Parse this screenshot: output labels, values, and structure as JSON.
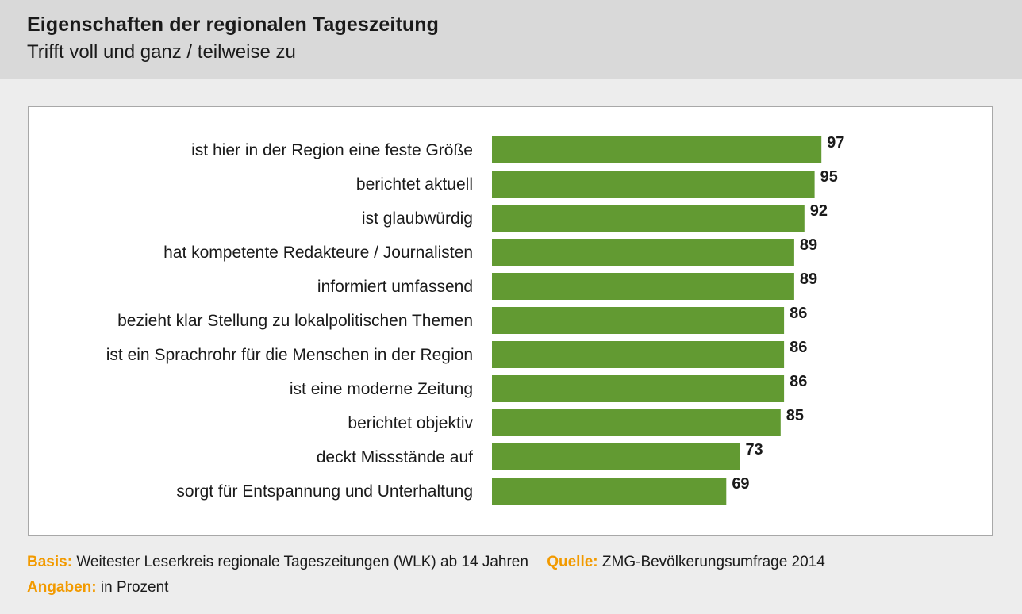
{
  "header": {
    "title": "Eigenschaften der regionalen Tageszeitung",
    "subtitle": "Trifft voll und ganz / teilweise zu"
  },
  "footer": {
    "basis_key": "Basis:",
    "basis_text": "Weitester Leserkreis regionale Tageszeitungen (WLK) ab 14 Jahren",
    "quelle_key": "Quelle:",
    "quelle_text": "ZMG-Bevölkerungsumfrage 2014",
    "angaben_key": "Angaben:",
    "angaben_text": "in Prozent"
  },
  "colors": {
    "bar": "#629a32",
    "accent": "#f29a00",
    "header_bg": "#d9d9d9",
    "page_bg": "#ededed"
  },
  "chart_data": {
    "type": "bar",
    "orientation": "horizontal",
    "title": "Eigenschaften der regionalen Tageszeitung",
    "subtitle": "Trifft voll und ganz / teilweise zu",
    "unit": "Prozent",
    "xlim": [
      0,
      100
    ],
    "grid": false,
    "legend": "none",
    "categories": [
      "ist hier in der Region eine feste Größe",
      "berichtet aktuell",
      "ist glaubwürdig",
      "hat kompetente Redakteure / Journalisten",
      "informiert umfassend",
      "bezieht klar Stellung zu lokalpolitischen Themen",
      "ist ein Sprachrohr für die Menschen in der Region",
      "ist eine moderne Zeitung",
      "berichtet objektiv",
      "deckt Missstände auf",
      "sorgt für Entspannung und Unterhaltung"
    ],
    "values": [
      97,
      95,
      92,
      89,
      89,
      86,
      86,
      86,
      85,
      73,
      69
    ]
  }
}
